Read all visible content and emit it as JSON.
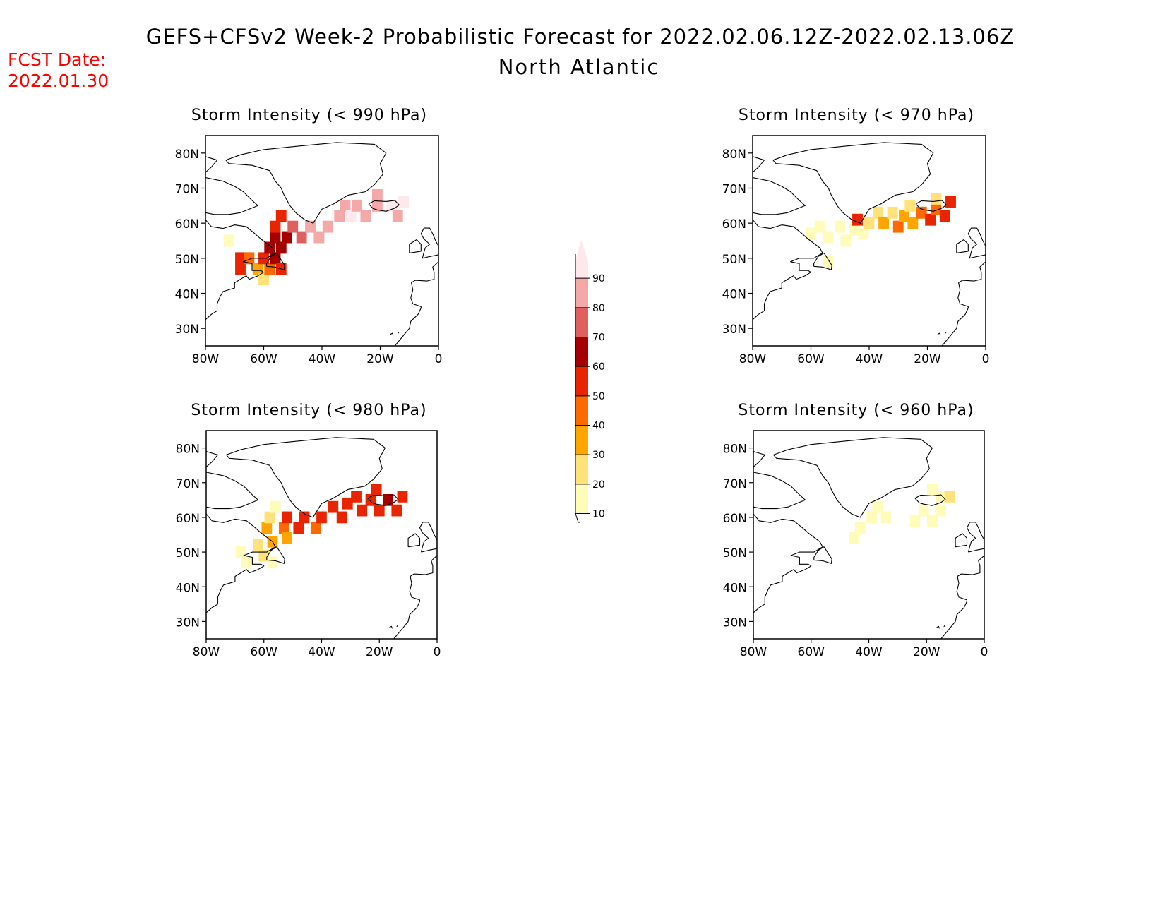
{
  "header": {
    "title": "GEFS+CFSv2 Week-2 Probabilistic Forecast for 2022.02.06.12Z-2022.02.13.06Z",
    "subtitle": "North Atlantic",
    "fcst_label": "FCST Date:",
    "fcst_date": "2022.01.30",
    "fcst_color": "#ff0000"
  },
  "axes": {
    "lat_labels": [
      "80N",
      "70N",
      "60N",
      "50N",
      "40N",
      "30N"
    ],
    "lat_values": [
      80,
      70,
      60,
      50,
      40,
      30
    ],
    "lon_labels": [
      "80W",
      "60W",
      "40W",
      "20W",
      "0"
    ],
    "lon_values": [
      -80,
      -60,
      -40,
      -20,
      0
    ],
    "lat_range": [
      25,
      85
    ],
    "lon_range": [
      -80,
      0
    ]
  },
  "legend": {
    "levels": [
      "10",
      "20",
      "30",
      "40",
      "50",
      "60",
      "70",
      "80",
      "90"
    ],
    "colors": [
      "#fffbb8",
      "#ffe27a",
      "#ffa500",
      "#ff6a00",
      "#e82500",
      "#a50000",
      "#e06060",
      "#f5a8a8",
      "#fde8ec"
    ]
  },
  "panels": [
    {
      "title": "Storm Intensity (< 990 hPa)",
      "cells": [
        {
          "lat": 47,
          "lon": -68,
          "v": 50
        },
        {
          "lat": 50,
          "lon": -68,
          "v": 50
        },
        {
          "lat": 50,
          "lon": -65,
          "v": 40
        },
        {
          "lat": 47,
          "lon": -62,
          "v": 30
        },
        {
          "lat": 44,
          "lon": -60,
          "v": 20
        },
        {
          "lat": 47,
          "lon": -58,
          "v": 40
        },
        {
          "lat": 50,
          "lon": -60,
          "v": 50
        },
        {
          "lat": 50,
          "lon": -56,
          "v": 60
        },
        {
          "lat": 53,
          "lon": -58,
          "v": 60
        },
        {
          "lat": 53,
          "lon": -54,
          "v": 60
        },
        {
          "lat": 56,
          "lon": -56,
          "v": 60
        },
        {
          "lat": 59,
          "lon": -56,
          "v": 50
        },
        {
          "lat": 62,
          "lon": -54,
          "v": 50
        },
        {
          "lat": 47,
          "lon": -54,
          "v": 50
        },
        {
          "lat": 56,
          "lon": -52,
          "v": 60
        },
        {
          "lat": 59,
          "lon": -50,
          "v": 70
        },
        {
          "lat": 56,
          "lon": -47,
          "v": 70
        },
        {
          "lat": 59,
          "lon": -44,
          "v": 80
        },
        {
          "lat": 56,
          "lon": -41,
          "v": 80
        },
        {
          "lat": 59,
          "lon": -38,
          "v": 80
        },
        {
          "lat": 62,
          "lon": -34,
          "v": 80
        },
        {
          "lat": 65,
          "lon": -32,
          "v": 80
        },
        {
          "lat": 62,
          "lon": -30,
          "v": 90
        },
        {
          "lat": 65,
          "lon": -28,
          "v": 80
        },
        {
          "lat": 62,
          "lon": -25,
          "v": 80
        },
        {
          "lat": 65,
          "lon": -21,
          "v": 80
        },
        {
          "lat": 68,
          "lon": -21,
          "v": 80
        },
        {
          "lat": 65,
          "lon": -16,
          "v": 90
        },
        {
          "lat": 62,
          "lon": -14,
          "v": 80
        },
        {
          "lat": 66,
          "lon": -12,
          "v": 90
        },
        {
          "lat": 55,
          "lon": -72,
          "v": 10
        }
      ]
    },
    {
      "title": "Storm Intensity (< 970 hPa)",
      "cells": [
        {
          "lat": 57,
          "lon": -60,
          "v": 10
        },
        {
          "lat": 59,
          "lon": -57,
          "v": 10
        },
        {
          "lat": 56,
          "lon": -54,
          "v": 10
        },
        {
          "lat": 59,
          "lon": -50,
          "v": 10
        },
        {
          "lat": 55,
          "lon": -48,
          "v": 10
        },
        {
          "lat": 58,
          "lon": -45,
          "v": 10
        },
        {
          "lat": 61,
          "lon": -44,
          "v": 50
        },
        {
          "lat": 57,
          "lon": -42,
          "v": 10
        },
        {
          "lat": 60,
          "lon": -40,
          "v": 20
        },
        {
          "lat": 63,
          "lon": -37,
          "v": 20
        },
        {
          "lat": 60,
          "lon": -35,
          "v": 30
        },
        {
          "lat": 63,
          "lon": -32,
          "v": 20
        },
        {
          "lat": 59,
          "lon": -30,
          "v": 40
        },
        {
          "lat": 62,
          "lon": -28,
          "v": 30
        },
        {
          "lat": 65,
          "lon": -26,
          "v": 20
        },
        {
          "lat": 60,
          "lon": -25,
          "v": 30
        },
        {
          "lat": 63,
          "lon": -22,
          "v": 40
        },
        {
          "lat": 61,
          "lon": -19,
          "v": 50
        },
        {
          "lat": 64,
          "lon": -17,
          "v": 40
        },
        {
          "lat": 67,
          "lon": -17,
          "v": 20
        },
        {
          "lat": 62,
          "lon": -14,
          "v": 50
        },
        {
          "lat": 66,
          "lon": -12,
          "v": 50
        },
        {
          "lat": 49,
          "lon": -54,
          "v": 10
        }
      ]
    },
    {
      "title": "Storm Intensity (< 980 hPa)",
      "cells": [
        {
          "lat": 50,
          "lon": -68,
          "v": 10
        },
        {
          "lat": 47,
          "lon": -66,
          "v": 10
        },
        {
          "lat": 52,
          "lon": -62,
          "v": 20
        },
        {
          "lat": 49,
          "lon": -60,
          "v": 20
        },
        {
          "lat": 47,
          "lon": -57,
          "v": 10
        },
        {
          "lat": 53,
          "lon": -57,
          "v": 30
        },
        {
          "lat": 57,
          "lon": -59,
          "v": 30
        },
        {
          "lat": 60,
          "lon": -58,
          "v": 20
        },
        {
          "lat": 63,
          "lon": -56,
          "v": 10
        },
        {
          "lat": 57,
          "lon": -53,
          "v": 40
        },
        {
          "lat": 60,
          "lon": -52,
          "v": 50
        },
        {
          "lat": 54,
          "lon": -52,
          "v": 30
        },
        {
          "lat": 57,
          "lon": -48,
          "v": 50
        },
        {
          "lat": 60,
          "lon": -46,
          "v": 50
        },
        {
          "lat": 57,
          "lon": -42,
          "v": 40
        },
        {
          "lat": 60,
          "lon": -40,
          "v": 50
        },
        {
          "lat": 63,
          "lon": -36,
          "v": 50
        },
        {
          "lat": 60,
          "lon": -33,
          "v": 50
        },
        {
          "lat": 64,
          "lon": -31,
          "v": 50
        },
        {
          "lat": 66,
          "lon": -28,
          "v": 50
        },
        {
          "lat": 62,
          "lon": -26,
          "v": 50
        },
        {
          "lat": 65,
          "lon": -23,
          "v": 50
        },
        {
          "lat": 68,
          "lon": -21,
          "v": 50
        },
        {
          "lat": 62,
          "lon": -20,
          "v": 50
        },
        {
          "lat": 65,
          "lon": -17,
          "v": 60
        },
        {
          "lat": 62,
          "lon": -14,
          "v": 50
        },
        {
          "lat": 66,
          "lon": -12,
          "v": 50
        }
      ]
    },
    {
      "title": "Storm Intensity (< 960 hPa)",
      "cells": [
        {
          "lat": 54,
          "lon": -45,
          "v": 10
        },
        {
          "lat": 57,
          "lon": -43,
          "v": 10
        },
        {
          "lat": 60,
          "lon": -39,
          "v": 10
        },
        {
          "lat": 63,
          "lon": -37,
          "v": 10
        },
        {
          "lat": 60,
          "lon": -34,
          "v": 10
        },
        {
          "lat": 59,
          "lon": -24,
          "v": 10
        },
        {
          "lat": 62,
          "lon": -21,
          "v": 10
        },
        {
          "lat": 59,
          "lon": -18,
          "v": 10
        },
        {
          "lat": 62,
          "lon": -15,
          "v": 10
        },
        {
          "lat": 66,
          "lon": -15,
          "v": 10
        },
        {
          "lat": 66,
          "lon": -12,
          "v": 20
        },
        {
          "lat": 68,
          "lon": -18,
          "v": 10
        }
      ]
    }
  ]
}
